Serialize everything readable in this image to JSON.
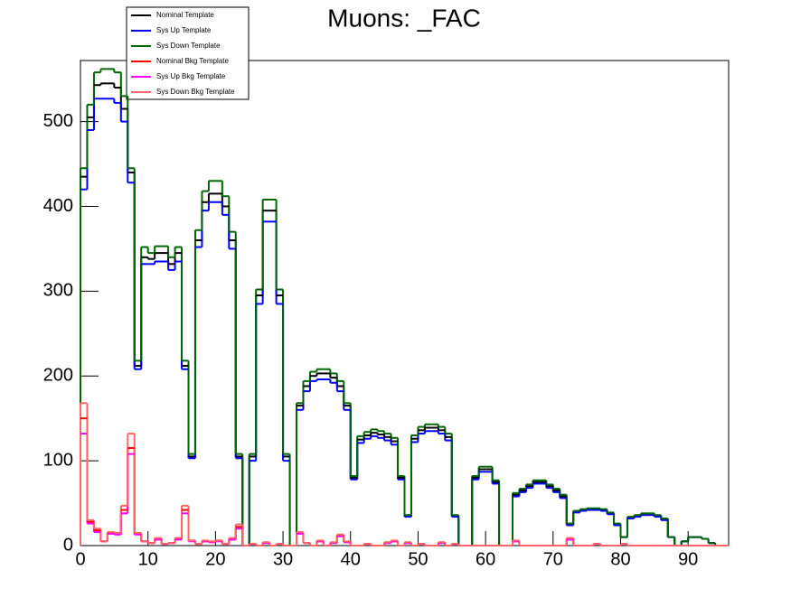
{
  "chart_data": {
    "type": "histogram",
    "title": "Muons: _FAC",
    "bins": [
      0,
      1,
      2,
      3,
      4,
      5,
      6,
      7,
      8,
      9,
      10,
      11,
      12,
      13,
      14,
      15,
      16,
      17,
      18,
      19,
      20,
      21,
      22,
      23,
      24,
      25,
      26,
      27,
      28,
      29,
      30,
      31,
      32,
      33,
      34,
      35,
      36,
      37,
      38,
      39,
      40,
      41,
      42,
      43,
      44,
      45,
      46,
      47,
      48,
      49,
      50,
      51,
      52,
      53,
      54,
      55,
      56,
      57,
      58,
      59,
      60,
      61,
      62,
      63,
      64,
      65,
      66,
      67,
      68,
      69,
      70,
      71,
      72,
      73,
      74,
      75,
      76,
      77,
      78,
      79,
      80,
      81,
      82,
      83,
      84,
      85,
      86,
      87,
      88,
      89,
      90,
      91,
      92,
      93,
      94,
      95,
      96
    ],
    "xlim": [
      0,
      96
    ],
    "xticks": [
      0,
      10,
      20,
      30,
      40,
      50,
      60,
      70,
      80,
      90
    ],
    "ylim": [
      0,
      572
    ],
    "yticks": [
      0,
      100,
      200,
      300,
      400,
      500
    ],
    "legend": "top-left",
    "series": [
      {
        "name": "Nominal Template",
        "color": "#000000",
        "values": [
          435,
          505,
          543,
          545,
          545,
          540,
          515,
          440,
          212,
          340,
          338,
          345,
          345,
          332,
          345,
          212,
          105,
          360,
          405,
          415,
          415,
          400,
          360,
          105,
          0,
          105,
          295,
          395,
          395,
          295,
          105,
          0,
          165,
          188,
          200,
          203,
          203,
          198,
          188,
          165,
          80,
          125,
          130,
          133,
          131,
          128,
          123,
          80,
          35,
          126,
          136,
          139,
          139,
          136,
          128,
          35,
          0,
          0,
          80,
          90,
          90,
          75,
          0,
          0,
          60,
          65,
          70,
          75,
          75,
          70,
          65,
          58,
          25,
          40,
          42,
          43,
          43,
          42,
          38,
          25,
          10,
          33,
          35,
          37,
          37,
          35,
          31,
          10,
          0,
          5,
          10,
          10,
          8,
          3,
          0,
          0
        ]
      },
      {
        "name": "Sys Up Template",
        "color": "#0000ff",
        "values": [
          420,
          490,
          527,
          527,
          527,
          522,
          500,
          428,
          208,
          332,
          332,
          335,
          335,
          325,
          335,
          208,
          103,
          352,
          395,
          405,
          405,
          390,
          350,
          103,
          0,
          100,
          285,
          382,
          382,
          285,
          100,
          0,
          160,
          182,
          194,
          196,
          196,
          192,
          182,
          160,
          78,
          121,
          126,
          129,
          127,
          124,
          119,
          78,
          34,
          122,
          132,
          135,
          135,
          132,
          124,
          34,
          0,
          0,
          78,
          87,
          87,
          73,
          0,
          0,
          58,
          63,
          68,
          73,
          73,
          68,
          63,
          56,
          24,
          39,
          41,
          42,
          42,
          41,
          37,
          24,
          10,
          32,
          34,
          36,
          36,
          34,
          30,
          10,
          0,
          5,
          10,
          10,
          8,
          3,
          0,
          0
        ]
      },
      {
        "name": "Sys Down Template",
        "color": "#006600",
        "values": [
          445,
          520,
          558,
          562,
          562,
          558,
          530,
          445,
          218,
          352,
          345,
          353,
          353,
          340,
          352,
          218,
          108,
          372,
          418,
          430,
          430,
          412,
          370,
          108,
          0,
          108,
          302,
          408,
          408,
          302,
          108,
          0,
          168,
          194,
          205,
          208,
          208,
          203,
          194,
          168,
          82,
          129,
          134,
          137,
          135,
          132,
          127,
          82,
          36,
          130,
          140,
          143,
          143,
          140,
          132,
          36,
          0,
          0,
          82,
          93,
          93,
          77,
          0,
          0,
          62,
          67,
          72,
          77,
          77,
          72,
          67,
          60,
          26,
          41,
          43,
          44,
          44,
          43,
          39,
          26,
          10,
          34,
          36,
          38,
          38,
          36,
          32,
          10,
          0,
          5,
          10,
          10,
          8,
          3,
          0,
          0
        ]
      },
      {
        "name": "Nominal Bkg Template",
        "color": "#ff0000",
        "values": [
          150,
          28,
          18,
          5,
          15,
          14,
          42,
          115,
          14,
          5,
          3,
          8,
          2,
          3,
          8,
          42,
          6,
          2,
          5,
          4,
          6,
          2,
          8,
          22,
          0,
          2,
          0,
          3,
          0,
          2,
          0,
          0,
          15,
          3,
          0,
          5,
          0,
          3,
          12,
          4,
          0,
          0,
          2,
          0,
          0,
          3,
          5,
          0,
          3,
          0,
          2,
          0,
          0,
          3,
          0,
          2,
          0,
          0,
          0,
          0,
          0,
          0,
          0,
          0,
          5,
          0,
          0,
          0,
          0,
          0,
          0,
          0,
          8,
          0,
          0,
          0,
          2,
          0,
          0,
          0,
          2,
          0,
          0,
          0,
          0,
          0,
          0,
          0,
          0,
          0,
          0,
          0,
          0,
          0,
          0,
          0
        ]
      },
      {
        "name": "Sys Up Bkg Template",
        "color": "#ff00ff",
        "values": [
          132,
          26,
          16,
          5,
          14,
          13,
          38,
          108,
          13,
          5,
          3,
          7,
          2,
          3,
          7,
          38,
          5,
          2,
          5,
          4,
          5,
          2,
          7,
          20,
          0,
          2,
          0,
          3,
          0,
          2,
          0,
          0,
          14,
          3,
          0,
          5,
          0,
          3,
          11,
          4,
          0,
          0,
          2,
          0,
          0,
          3,
          5,
          0,
          3,
          0,
          2,
          0,
          0,
          3,
          0,
          2,
          0,
          0,
          0,
          0,
          0,
          0,
          0,
          0,
          5,
          0,
          0,
          0,
          0,
          0,
          0,
          0,
          7,
          0,
          0,
          0,
          2,
          0,
          0,
          0,
          2,
          0,
          0,
          0,
          0,
          0,
          0,
          0,
          0,
          0,
          0,
          0,
          0,
          0,
          0,
          0
        ]
      },
      {
        "name": "Sys Down Bkg Template",
        "color": "#ff6666",
        "values": [
          168,
          30,
          20,
          5,
          16,
          15,
          47,
          132,
          15,
          5,
          3,
          9,
          2,
          3,
          9,
          47,
          6,
          2,
          6,
          5,
          6,
          2,
          9,
          25,
          0,
          2,
          0,
          4,
          0,
          2,
          0,
          0,
          16,
          3,
          0,
          6,
          0,
          4,
          13,
          5,
          0,
          0,
          2,
          0,
          0,
          4,
          6,
          0,
          4,
          0,
          2,
          0,
          0,
          4,
          0,
          2,
          0,
          0,
          0,
          0,
          0,
          0,
          0,
          0,
          6,
          0,
          0,
          0,
          0,
          0,
          0,
          0,
          9,
          0,
          0,
          0,
          2,
          0,
          0,
          0,
          2,
          0,
          0,
          0,
          0,
          0,
          0,
          0,
          0,
          0,
          0,
          0,
          0,
          0,
          0,
          0
        ]
      }
    ]
  }
}
